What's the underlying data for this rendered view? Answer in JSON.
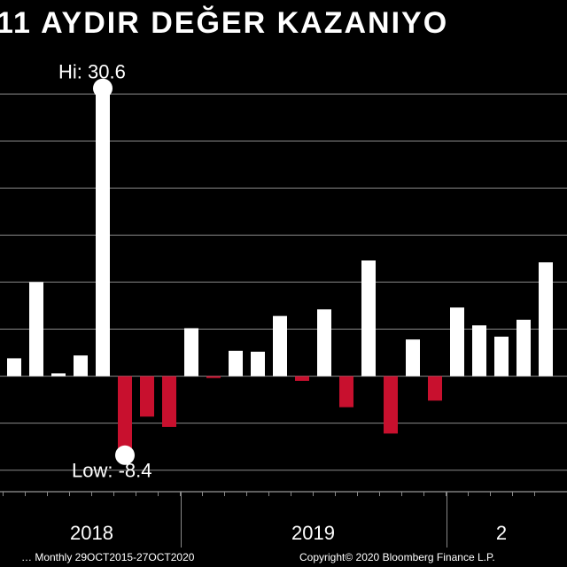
{
  "chart_data": {
    "type": "bar",
    "title": "11 AYDIR DEĞER KAZANIYO",
    "categories": [
      null,
      null,
      null,
      null,
      null,
      null,
      null,
      null,
      null,
      null,
      null,
      null,
      null,
      null,
      null,
      null,
      null,
      null,
      null,
      null,
      null,
      null,
      null,
      null,
      null
    ],
    "values": [
      1.9,
      10.0,
      0.3,
      2.2,
      30.6,
      -8.4,
      -4.3,
      -5.4,
      5.1,
      -0.2,
      2.7,
      2.6,
      6.4,
      -0.5,
      7.1,
      -3.3,
      12.3,
      -6.1,
      3.9,
      -2.6,
      7.3,
      5.4,
      4.2,
      6.0,
      12.1
    ],
    "positive_color": "#ffffff",
    "negative_color": "#c8102e",
    "ylim": [
      -12,
      35
    ],
    "yticks": [
      -10,
      -5,
      0,
      5,
      10,
      15,
      20,
      25,
      30
    ],
    "grid": true,
    "x_groups": [
      {
        "label": "2018",
        "size": 8
      },
      {
        "label": "2019",
        "size": 12
      },
      {
        "label": "2",
        "size": 5
      }
    ],
    "hi_label": "Hi: 30.6",
    "low_label": "Low: -8.4",
    "footer_left": "…  Monthly 29OCT2015-27OCT2020",
    "footer_right": "Copyright© 2020 Bloomberg Finance L.P."
  }
}
